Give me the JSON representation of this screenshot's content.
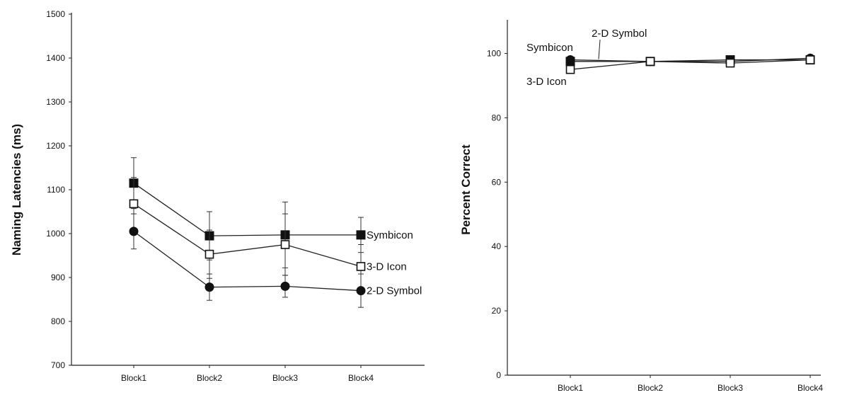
{
  "chart_data": [
    {
      "type": "line",
      "title": "",
      "xlabel": "",
      "ylabel": "Naming Latencies (ms)",
      "ylim": [
        700,
        1500
      ],
      "yticks": [
        700,
        800,
        900,
        1000,
        1100,
        1200,
        1300,
        1400,
        1500
      ],
      "categories": [
        "Block1",
        "Block2",
        "Block3",
        "Block4"
      ],
      "grid": false,
      "legend": "direct labels at right end of lines",
      "series": [
        {
          "name": "Symbicon",
          "marker": "filled-square",
          "values": [
            1115,
            995,
            997,
            997
          ],
          "error": [
            58,
            55,
            75,
            40
          ]
        },
        {
          "name": "3-D Icon",
          "marker": "open-square",
          "values": [
            1068,
            953,
            975,
            925
          ],
          "error": [
            60,
            55,
            70,
            50
          ]
        },
        {
          "name": "2-D Symbol",
          "marker": "filled-circle",
          "values": [
            1005,
            878,
            880,
            870
          ],
          "error": [
            40,
            30,
            25,
            38
          ]
        }
      ]
    },
    {
      "type": "line",
      "title": "",
      "xlabel": "",
      "ylabel": "Percent Correct",
      "ylim": [
        0,
        110
      ],
      "yticks": [
        0,
        20,
        40,
        60,
        80,
        100
      ],
      "categories": [
        "Block1",
        "Block2",
        "Block3",
        "Block4"
      ],
      "grid": false,
      "legend": "direct labels near Block1",
      "series": [
        {
          "name": "Symbicon",
          "marker": "filled-square",
          "values": [
            97.5,
            97.5,
            98,
            98
          ]
        },
        {
          "name": "2-D Symbol",
          "marker": "filled-circle",
          "values": [
            98,
            97.5,
            97.5,
            98.5
          ]
        },
        {
          "name": "3-D Icon",
          "marker": "open-square",
          "values": [
            95,
            97.5,
            97,
            98
          ]
        }
      ]
    }
  ]
}
